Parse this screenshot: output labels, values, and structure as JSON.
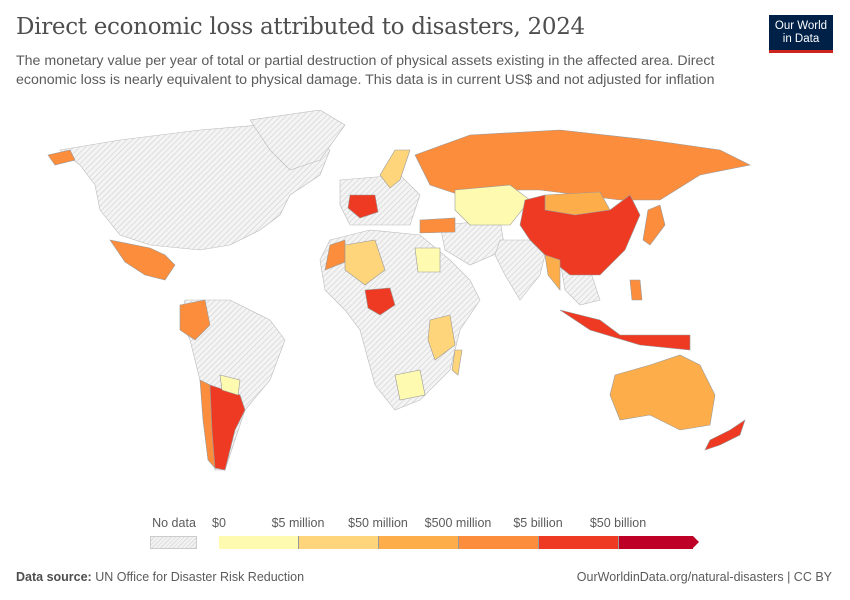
{
  "header": {
    "title": "Direct economic loss attributed to disasters, 2024",
    "subtitle": "The monetary value per year of total or partial destruction of physical assets existing in the affected area. Direct economic loss is nearly equivalent to physical damage. This data is in current US$ and not adjusted for inflation",
    "logo_text": "Our World in Data"
  },
  "legend": {
    "no_data_label": "No data",
    "tick_labels": [
      "$0",
      "$5 million",
      "$50 million",
      "$500 million",
      "$5 billion",
      "$50 billion"
    ],
    "bin_colors": [
      "#fefbb0",
      "#fed57a",
      "#fdae4b",
      "#fb8d3d",
      "#ee3a23",
      "#bf0026"
    ],
    "no_data_color": "#e6e6e6"
  },
  "map": {
    "countries": [
      {
        "name": "Russia",
        "bin": 3
      },
      {
        "name": "China",
        "bin": 4
      },
      {
        "name": "France",
        "bin": 4
      },
      {
        "name": "Nigeria",
        "bin": 4
      },
      {
        "name": "Indonesia",
        "bin": 4
      },
      {
        "name": "Argentina",
        "bin": 4
      },
      {
        "name": "New Zealand",
        "bin": 4
      },
      {
        "name": "Mexico",
        "bin": 3
      },
      {
        "name": "Colombia",
        "bin": 3
      },
      {
        "name": "Chile",
        "bin": 3
      },
      {
        "name": "Japan",
        "bin": 3
      },
      {
        "name": "Philippines",
        "bin": 3
      },
      {
        "name": "Turkey",
        "bin": 3
      },
      {
        "name": "Morocco",
        "bin": 3
      },
      {
        "name": "Mongolia",
        "bin": 2
      },
      {
        "name": "Australia",
        "bin": 2
      },
      {
        "name": "Myanmar",
        "bin": 2
      },
      {
        "name": "Algeria",
        "bin": 1
      },
      {
        "name": "Sweden",
        "bin": 1
      },
      {
        "name": "Tanzania",
        "bin": 1
      },
      {
        "name": "Madagascar",
        "bin": 1
      },
      {
        "name": "Kazakhstan",
        "bin": 0
      },
      {
        "name": "Egypt",
        "bin": 0
      },
      {
        "name": "Southern Africa",
        "bin": 0
      },
      {
        "name": "Paraguay",
        "bin": 0
      },
      {
        "name": "Alaska",
        "bin": 3
      }
    ]
  },
  "footer": {
    "source_label": "Data source:",
    "source": "UN Office for Disaster Risk Reduction",
    "link": "OurWorldinData.org/natural-disasters | CC BY"
  }
}
